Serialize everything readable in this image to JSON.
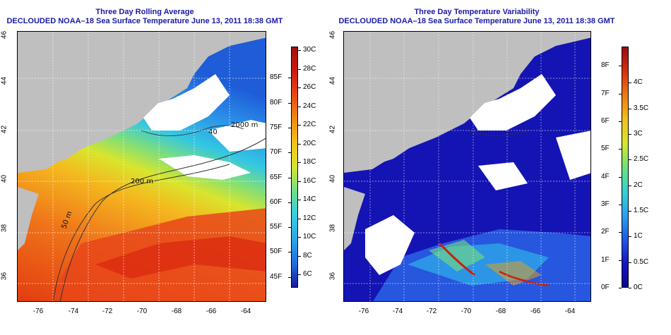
{
  "panels": [
    {
      "title": "Three Day Rolling Average",
      "subtitle": "DECLOUDED NOAA–18 Sea Surface Temperature June 13, 2011 18:38 GMT",
      "lat_ticks": [
        "36",
        "38",
        "40",
        "42",
        "44",
        "46"
      ],
      "lon_ticks": [
        "-76",
        "-74",
        "-72",
        "-70",
        "-68",
        "-66",
        "-64"
      ],
      "contour_labels": [
        "2000 m",
        "200 m",
        "50 m",
        "40"
      ],
      "colorbar": {
        "colors": [
          "#1a1aa0",
          "#1e6fe0",
          "#2ba6ec",
          "#33cfe0",
          "#6ee08a",
          "#d7e52a",
          "#f3c21d",
          "#f08a12",
          "#e84a10",
          "#cc1a10",
          "#a00f10"
        ],
        "left_labels": [
          "45F",
          "50F",
          "55F",
          "60F",
          "65F",
          "70F",
          "75F",
          "80F",
          "85F"
        ],
        "right_labels": [
          "6C",
          "8C",
          "10C",
          "12C",
          "14C",
          "16C",
          "18C",
          "20C",
          "22C",
          "24C",
          "26C",
          "28C",
          "30C"
        ]
      }
    },
    {
      "title": "Three Day Temperature Variability",
      "subtitle": "DECLOUDED NOAA–18 Sea Surface Temperature June 13, 2011 18:38 GMT",
      "lat_ticks": [
        "36",
        "38",
        "40",
        "42",
        "44",
        "46"
      ],
      "lon_ticks": [
        "-76",
        "-74",
        "-72",
        "-70",
        "-68",
        "-66",
        "-64"
      ],
      "colorbar": {
        "colors": [
          "#0a0a8c",
          "#1515c8",
          "#1e5ae6",
          "#2aa2ee",
          "#35d2d2",
          "#6fe27a",
          "#d8e82a",
          "#f2c019",
          "#ee7a12",
          "#d8300e",
          "#9a0a10"
        ],
        "left_labels": [
          "0F",
          "1F",
          "2F",
          "3F",
          "4F",
          "5F",
          "6F",
          "7F",
          "8F"
        ],
        "right_labels": [
          "0C",
          "0.5C",
          "1C",
          "1.5C",
          "2C",
          "2.5C",
          "3C",
          "3.5C",
          "4C"
        ]
      }
    }
  ]
}
